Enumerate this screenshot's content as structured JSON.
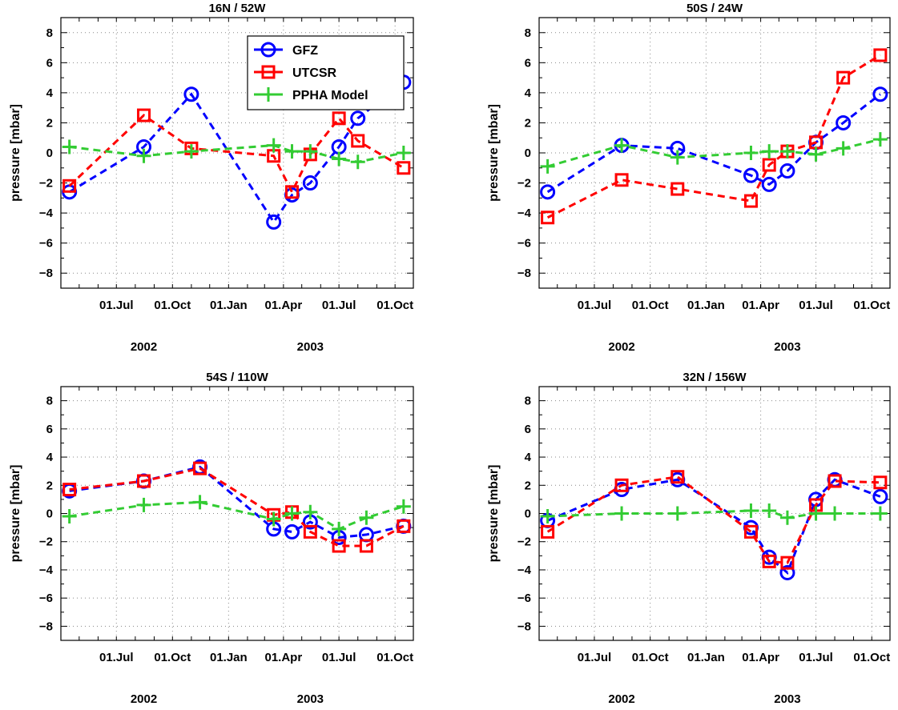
{
  "colors": {
    "gfz": "#0000ff",
    "utcsr": "#ff0000",
    "ppha": "#33cc33",
    "grid": "#888888",
    "axis": "#000000"
  },
  "legend": {
    "placement": "top-right of first panel",
    "entries": [
      {
        "label": "GFZ",
        "marker": "circle",
        "color": "#0000ff"
      },
      {
        "label": "UTCSR",
        "marker": "square",
        "color": "#ff0000"
      },
      {
        "label": "PPHA Model",
        "marker": "plus",
        "color": "#33cc33"
      }
    ]
  },
  "chart_data": [
    {
      "type": "line",
      "title": "16N / 52W",
      "ylabel": "pressure [mbar]",
      "xlabel": "",
      "ylim": [
        -9,
        9
      ],
      "yticks": [
        -8,
        -6,
        -4,
        -2,
        0,
        2,
        4,
        6,
        8
      ],
      "xlim": [
        "2002-04-01",
        "2003-10-31"
      ],
      "xticks": [
        {
          "date": "2002-07-01",
          "label": "01.Jul"
        },
        {
          "date": "2002-10-01",
          "label": "01.Oct"
        },
        {
          "date": "2003-01-01",
          "label": "01.Jan"
        },
        {
          "date": "2003-04-01",
          "label": "01.Apr"
        },
        {
          "date": "2003-07-01",
          "label": "01.Jul"
        },
        {
          "date": "2003-10-01",
          "label": "01.Oct"
        }
      ],
      "year_labels": [
        {
          "date": "2002-08-15",
          "label": "2002"
        },
        {
          "date": "2003-05-15",
          "label": "2003"
        }
      ],
      "grid": true,
      "show_legend": true,
      "series": [
        {
          "name": "GFZ",
          "x": [
            "2002-04-15",
            "2002-08-15",
            "2002-11-01",
            "2003-03-16",
            "2003-04-15",
            "2003-05-15",
            "2003-07-01",
            "2003-08-01",
            "2003-10-15"
          ],
          "y": [
            -2.6,
            0.4,
            3.9,
            -4.6,
            -2.8,
            -2.0,
            0.4,
            2.3,
            4.7
          ]
        },
        {
          "name": "UTCSR",
          "x": [
            "2002-04-15",
            "2002-08-15",
            "2002-11-01",
            "2003-03-16",
            "2003-04-15",
            "2003-05-15",
            "2003-07-01",
            "2003-08-01",
            "2003-10-15"
          ],
          "y": [
            -2.2,
            2.5,
            0.3,
            -0.2,
            -2.6,
            -0.1,
            2.3,
            0.8,
            -1.0
          ]
        },
        {
          "name": "PPHA Model",
          "x": [
            "2002-04-15",
            "2002-08-15",
            "2002-11-01",
            "2003-03-16",
            "2003-04-15",
            "2003-05-15",
            "2003-07-01",
            "2003-08-01",
            "2003-10-15"
          ],
          "y": [
            0.4,
            -0.2,
            0.1,
            0.5,
            0.1,
            0.1,
            -0.4,
            -0.6,
            0.0
          ]
        }
      ]
    },
    {
      "type": "line",
      "title": "50S / 24W",
      "ylabel": "pressure [mbar]",
      "xlabel": "",
      "ylim": [
        -9,
        9
      ],
      "yticks": [
        -8,
        -6,
        -4,
        -2,
        0,
        2,
        4,
        6,
        8
      ],
      "xlim": [
        "2002-04-01",
        "2003-10-31"
      ],
      "xticks": [
        {
          "date": "2002-07-01",
          "label": "01.Jul"
        },
        {
          "date": "2002-10-01",
          "label": "01.Oct"
        },
        {
          "date": "2003-01-01",
          "label": "01.Jan"
        },
        {
          "date": "2003-04-01",
          "label": "01.Apr"
        },
        {
          "date": "2003-07-01",
          "label": "01.Jul"
        },
        {
          "date": "2003-10-01",
          "label": "01.Oct"
        }
      ],
      "year_labels": [
        {
          "date": "2002-08-15",
          "label": "2002"
        },
        {
          "date": "2003-05-15",
          "label": "2003"
        }
      ],
      "grid": true,
      "show_legend": false,
      "series": [
        {
          "name": "GFZ",
          "x": [
            "2002-04-15",
            "2002-08-15",
            "2002-11-15",
            "2003-03-16",
            "2003-04-15",
            "2003-05-15",
            "2003-07-01",
            "2003-08-15",
            "2003-10-15"
          ],
          "y": [
            -2.6,
            0.5,
            0.3,
            -1.5,
            -2.1,
            -1.2,
            0.7,
            2.0,
            3.9
          ]
        },
        {
          "name": "UTCSR",
          "x": [
            "2002-04-15",
            "2002-08-15",
            "2002-11-15",
            "2003-03-16",
            "2003-04-15",
            "2003-05-15",
            "2003-07-01",
            "2003-08-15",
            "2003-10-15"
          ],
          "y": [
            -4.3,
            -1.8,
            -2.4,
            -3.2,
            -0.8,
            0.1,
            0.7,
            5.0,
            6.5
          ]
        },
        {
          "name": "PPHA Model",
          "x": [
            "2002-04-15",
            "2002-08-15",
            "2002-11-15",
            "2003-03-16",
            "2003-04-15",
            "2003-05-15",
            "2003-07-01",
            "2003-08-15",
            "2003-10-15"
          ],
          "y": [
            -0.9,
            0.5,
            -0.3,
            0.0,
            0.1,
            0.1,
            -0.1,
            0.3,
            0.9
          ]
        }
      ]
    },
    {
      "type": "line",
      "title": "54S / 110W",
      "ylabel": "pressure [mbar]",
      "xlabel": "",
      "ylim": [
        -9,
        9
      ],
      "yticks": [
        -8,
        -6,
        -4,
        -2,
        0,
        2,
        4,
        6,
        8
      ],
      "xlim": [
        "2002-04-01",
        "2003-10-31"
      ],
      "xticks": [
        {
          "date": "2002-07-01",
          "label": "01.Jul"
        },
        {
          "date": "2002-10-01",
          "label": "01.Oct"
        },
        {
          "date": "2003-01-01",
          "label": "01.Jan"
        },
        {
          "date": "2003-04-01",
          "label": "01.Apr"
        },
        {
          "date": "2003-07-01",
          "label": "01.Jul"
        },
        {
          "date": "2003-10-01",
          "label": "01.Oct"
        }
      ],
      "year_labels": [
        {
          "date": "2002-08-15",
          "label": "2002"
        },
        {
          "date": "2003-05-15",
          "label": "2003"
        }
      ],
      "grid": true,
      "show_legend": false,
      "series": [
        {
          "name": "GFZ",
          "x": [
            "2002-04-15",
            "2002-08-15",
            "2002-11-15",
            "2003-03-16",
            "2003-04-15",
            "2003-05-15",
            "2003-07-01",
            "2003-08-15",
            "2003-10-15"
          ],
          "y": [
            1.6,
            2.3,
            3.3,
            -1.1,
            -1.3,
            -0.6,
            -1.7,
            -1.5,
            -0.9
          ]
        },
        {
          "name": "UTCSR",
          "x": [
            "2002-04-15",
            "2002-08-15",
            "2002-11-15",
            "2003-03-16",
            "2003-04-15",
            "2003-05-15",
            "2003-07-01",
            "2003-08-15",
            "2003-10-15"
          ],
          "y": [
            1.7,
            2.3,
            3.2,
            -0.1,
            0.1,
            -1.3,
            -2.3,
            -2.3,
            -0.9
          ]
        },
        {
          "name": "PPHA Model",
          "x": [
            "2002-04-15",
            "2002-08-15",
            "2002-11-15",
            "2003-03-16",
            "2003-04-15",
            "2003-05-15",
            "2003-07-01",
            "2003-08-15",
            "2003-10-15"
          ],
          "y": [
            -0.2,
            0.6,
            0.8,
            -0.4,
            0.0,
            0.1,
            -1.1,
            -0.3,
            0.5
          ]
        }
      ]
    },
    {
      "type": "line",
      "title": "32N / 156W",
      "ylabel": "pressure [mbar]",
      "xlabel": "",
      "ylim": [
        -9,
        9
      ],
      "yticks": [
        -8,
        -6,
        -4,
        -2,
        0,
        2,
        4,
        6,
        8
      ],
      "xlim": [
        "2002-04-01",
        "2003-10-31"
      ],
      "xticks": [
        {
          "date": "2002-07-01",
          "label": "01.Jul"
        },
        {
          "date": "2002-10-01",
          "label": "01.Oct"
        },
        {
          "date": "2003-01-01",
          "label": "01.Jan"
        },
        {
          "date": "2003-04-01",
          "label": "01.Apr"
        },
        {
          "date": "2003-07-01",
          "label": "01.Jul"
        },
        {
          "date": "2003-10-01",
          "label": "01.Oct"
        }
      ],
      "year_labels": [
        {
          "date": "2002-08-15",
          "label": "2002"
        },
        {
          "date": "2003-05-15",
          "label": "2003"
        }
      ],
      "grid": true,
      "show_legend": false,
      "series": [
        {
          "name": "GFZ",
          "x": [
            "2002-04-15",
            "2002-08-15",
            "2002-11-15",
            "2003-03-16",
            "2003-04-15",
            "2003-05-15",
            "2003-07-01",
            "2003-08-01",
            "2003-10-15"
          ],
          "y": [
            -0.5,
            1.7,
            2.4,
            -1.0,
            -3.1,
            -4.2,
            1.0,
            2.4,
            1.2
          ]
        },
        {
          "name": "UTCSR",
          "x": [
            "2002-04-15",
            "2002-08-15",
            "2002-11-15",
            "2003-03-16",
            "2003-04-15",
            "2003-05-15",
            "2003-07-01",
            "2003-08-01",
            "2003-10-15"
          ],
          "y": [
            -1.3,
            2.0,
            2.6,
            -1.3,
            -3.4,
            -3.5,
            0.6,
            2.3,
            2.2
          ]
        },
        {
          "name": "PPHA Model",
          "x": [
            "2002-04-15",
            "2002-08-15",
            "2002-11-15",
            "2003-03-16",
            "2003-04-15",
            "2003-05-15",
            "2003-07-01",
            "2003-08-01",
            "2003-10-15"
          ],
          "y": [
            -0.2,
            0.0,
            0.0,
            0.2,
            0.2,
            -0.3,
            0.0,
            0.0,
            0.0
          ]
        }
      ]
    }
  ]
}
